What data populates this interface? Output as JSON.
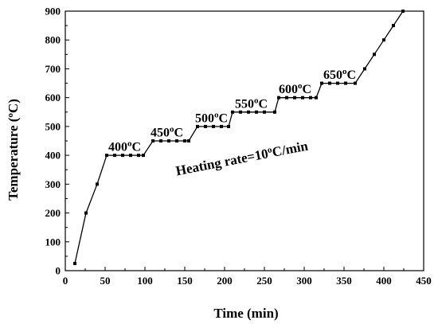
{
  "chart_data": {
    "type": "line",
    "title": "",
    "xlabel": "Time (min)",
    "ylabel": "Temperature (",
    "ylabel_sup": "o",
    "ylabel_end": "C)",
    "xlim": [
      0,
      450
    ],
    "ylim": [
      0,
      900
    ],
    "xticks": [
      "0",
      "50",
      "100",
      "150",
      "200",
      "250",
      "300",
      "350",
      "400",
      "450"
    ],
    "yticks": [
      "0",
      "100",
      "200",
      "300",
      "400",
      "500",
      "600",
      "700",
      "800",
      "900"
    ],
    "grid": false,
    "legend": "none",
    "series": [
      {
        "color": "#000000",
        "marker": "square",
        "x": [
          12,
          26,
          40,
          52,
          62,
          72,
          82,
          92,
          98,
          110,
          120,
          130,
          140,
          150,
          155,
          166,
          176,
          186,
          196,
          205,
          210,
          220,
          230,
          240,
          250,
          263,
          268,
          278,
          288,
          298,
          308,
          315,
          322,
          332,
          342,
          352,
          364,
          376,
          388,
          400,
          412,
          424
        ],
        "y": [
          25,
          200,
          300,
          400,
          400,
          400,
          400,
          400,
          400,
          450,
          450,
          450,
          450,
          450,
          450,
          500,
          500,
          500,
          500,
          500,
          550,
          550,
          550,
          550,
          550,
          550,
          600,
          600,
          600,
          600,
          600,
          600,
          650,
          650,
          650,
          650,
          650,
          700,
          750,
          800,
          850,
          900
        ]
      }
    ],
    "annotations": [
      {
        "label": "400",
        "deg": "o",
        "unit": "C",
        "x": 54,
        "y": 415
      },
      {
        "label": "450",
        "deg": "o",
        "unit": "C",
        "x": 107,
        "y": 465
      },
      {
        "label": "500",
        "deg": "o",
        "unit": "C",
        "x": 163,
        "y": 515
      },
      {
        "label": "550",
        "deg": "o",
        "unit": "C",
        "x": 213,
        "y": 565
      },
      {
        "label": "600",
        "deg": "o",
        "unit": "C",
        "x": 268,
        "y": 615
      },
      {
        "label": "650",
        "deg": "o",
        "unit": "C",
        "x": 324,
        "y": 665
      }
    ],
    "rate_note": {
      "text": "Heating rate=10",
      "deg": "o",
      "unit": "C/min",
      "x": 140,
      "y": 330
    }
  }
}
